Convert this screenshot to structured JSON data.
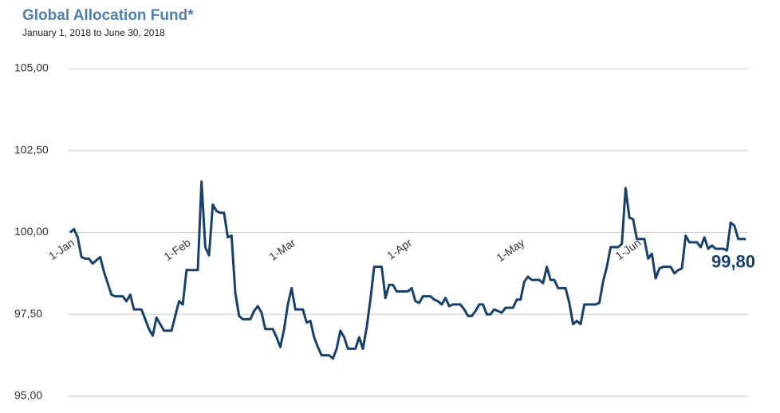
{
  "chart_data": {
    "type": "line",
    "title": "Global Allocation Fund*",
    "subtitle": "January 1, 2018 to June 30, 2018",
    "categories": [
      "1-Jan",
      null,
      null,
      null,
      null,
      null,
      null,
      null,
      null,
      null,
      null,
      null,
      null,
      null,
      null,
      null,
      null,
      null,
      null,
      null,
      null,
      null,
      null,
      null,
      null,
      null,
      null,
      null,
      null,
      null,
      null,
      "1-Feb",
      null,
      null,
      null,
      null,
      null,
      null,
      null,
      null,
      null,
      null,
      null,
      null,
      null,
      null,
      null,
      null,
      null,
      null,
      null,
      null,
      null,
      null,
      null,
      null,
      null,
      null,
      null,
      "1-Mar",
      null,
      null,
      null,
      null,
      null,
      null,
      null,
      null,
      null,
      null,
      null,
      null,
      null,
      null,
      null,
      null,
      null,
      null,
      null,
      null,
      null,
      null,
      null,
      null,
      null,
      null,
      null,
      null,
      null,
      null,
      "1-Apr",
      null,
      null,
      null,
      null,
      null,
      null,
      null,
      null,
      null,
      null,
      null,
      null,
      null,
      null,
      null,
      null,
      null,
      null,
      null,
      null,
      null,
      null,
      null,
      null,
      null,
      null,
      null,
      null,
      null,
      "1-May",
      null,
      null,
      null,
      null,
      null,
      null,
      null,
      null,
      null,
      null,
      null,
      null,
      null,
      null,
      null,
      null,
      null,
      null,
      null,
      null,
      null,
      null,
      null,
      null,
      null,
      null,
      null,
      null,
      null,
      null,
      "1-Jun",
      null,
      null,
      null,
      null,
      null,
      null,
      null,
      null,
      null,
      null,
      null,
      null,
      null,
      null,
      null,
      null,
      null,
      null,
      null,
      null,
      null,
      null,
      null,
      null,
      null,
      null,
      null,
      null,
      null
    ],
    "series": [
      {
        "name": "Global Allocation Fund*",
        "color": "#17416b",
        "values": [
          100.0,
          100.1,
          99.85,
          99.25,
          99.2,
          99.2,
          99.05,
          99.15,
          99.25,
          98.8,
          98.45,
          98.1,
          98.05,
          98.05,
          98.05,
          97.9,
          98.1,
          97.65,
          97.65,
          97.65,
          97.35,
          97.05,
          96.85,
          97.4,
          97.2,
          97.0,
          97.0,
          97.0,
          97.45,
          97.9,
          97.8,
          98.85,
          98.85,
          98.85,
          98.85,
          101.55,
          99.55,
          99.3,
          100.85,
          100.65,
          100.6,
          100.6,
          99.85,
          99.9,
          98.15,
          97.45,
          97.35,
          97.35,
          97.35,
          97.6,
          97.75,
          97.55,
          97.05,
          97.05,
          97.05,
          96.8,
          96.5,
          97.05,
          97.8,
          98.3,
          97.65,
          97.65,
          97.65,
          97.25,
          97.3,
          96.8,
          96.5,
          96.25,
          96.25,
          96.25,
          96.15,
          96.45,
          97.0,
          96.8,
          96.45,
          96.45,
          96.45,
          96.8,
          96.45,
          97.1,
          97.95,
          98.95,
          98.95,
          98.95,
          98.0,
          98.4,
          98.4,
          98.2,
          98.2,
          98.2,
          98.2,
          98.3,
          97.9,
          97.85,
          98.05,
          98.05,
          98.05,
          97.95,
          97.9,
          97.8,
          98.0,
          97.75,
          97.8,
          97.8,
          97.8,
          97.65,
          97.45,
          97.45,
          97.6,
          97.8,
          97.8,
          97.5,
          97.5,
          97.65,
          97.6,
          97.55,
          97.7,
          97.7,
          97.7,
          97.95,
          97.95,
          98.5,
          98.65,
          98.55,
          98.55,
          98.55,
          98.45,
          98.95,
          98.55,
          98.55,
          98.3,
          98.3,
          98.3,
          97.85,
          97.2,
          97.3,
          97.2,
          97.8,
          97.8,
          97.8,
          97.8,
          97.85,
          98.5,
          98.95,
          99.55,
          99.55,
          99.55,
          99.65,
          101.35,
          100.45,
          100.4,
          99.8,
          99.8,
          99.8,
          99.2,
          99.35,
          98.6,
          98.9,
          98.95,
          98.95,
          98.95,
          98.75,
          98.85,
          98.9,
          99.9,
          99.7,
          99.7,
          99.7,
          99.55,
          99.85,
          99.5,
          99.6,
          99.5,
          99.5,
          99.5,
          99.45,
          100.3,
          100.2,
          99.8,
          99.8,
          99.8
        ],
        "value_labels": [
          null,
          null,
          null,
          null,
          null,
          null,
          null,
          null,
          null,
          null,
          null,
          null,
          null,
          null,
          null,
          null,
          null,
          null,
          null,
          null,
          null,
          null,
          null,
          null,
          null,
          null,
          null,
          null,
          null,
          null,
          null,
          null,
          null,
          null,
          null,
          null,
          null,
          null,
          null,
          null,
          null,
          null,
          null,
          null,
          null,
          null,
          null,
          null,
          null,
          null,
          null,
          null,
          null,
          null,
          null,
          null,
          null,
          null,
          null,
          null,
          null,
          null,
          null,
          null,
          null,
          null,
          null,
          null,
          null,
          null,
          null,
          null,
          null,
          null,
          null,
          null,
          null,
          null,
          null,
          null,
          null,
          null,
          null,
          null,
          null,
          null,
          null,
          null,
          null,
          null,
          null,
          null,
          null,
          null,
          null,
          null,
          null,
          null,
          null,
          null,
          null,
          null,
          null,
          null,
          null,
          null,
          null,
          null,
          null,
          null,
          null,
          null,
          null,
          null,
          null,
          null,
          null,
          null,
          null,
          null,
          null,
          null,
          null,
          null,
          null,
          null,
          null,
          null,
          null,
          null,
          null,
          null,
          null,
          null,
          null,
          null,
          null,
          null,
          null,
          null,
          null,
          null,
          null,
          null,
          null,
          null,
          null,
          null,
          null,
          null,
          null,
          null,
          null,
          null,
          null,
          null,
          null,
          null,
          null,
          null,
          null,
          null,
          null,
          null,
          null,
          null,
          null,
          null,
          null,
          null,
          null,
          null,
          null,
          null,
          null,
          null,
          null,
          null,
          null,
          null,
          "99,80"
        ]
      }
    ],
    "ylim": [
      95,
      105
    ],
    "yticks": [
      {
        "value": 95,
        "label": "95,00"
      },
      {
        "value": 97.5,
        "label": "97,50"
      },
      {
        "value": 100,
        "label": "100,00"
      },
      {
        "value": 102.5,
        "label": "102,50"
      },
      {
        "value": 105,
        "label": "105,00"
      }
    ],
    "grid": true
  }
}
